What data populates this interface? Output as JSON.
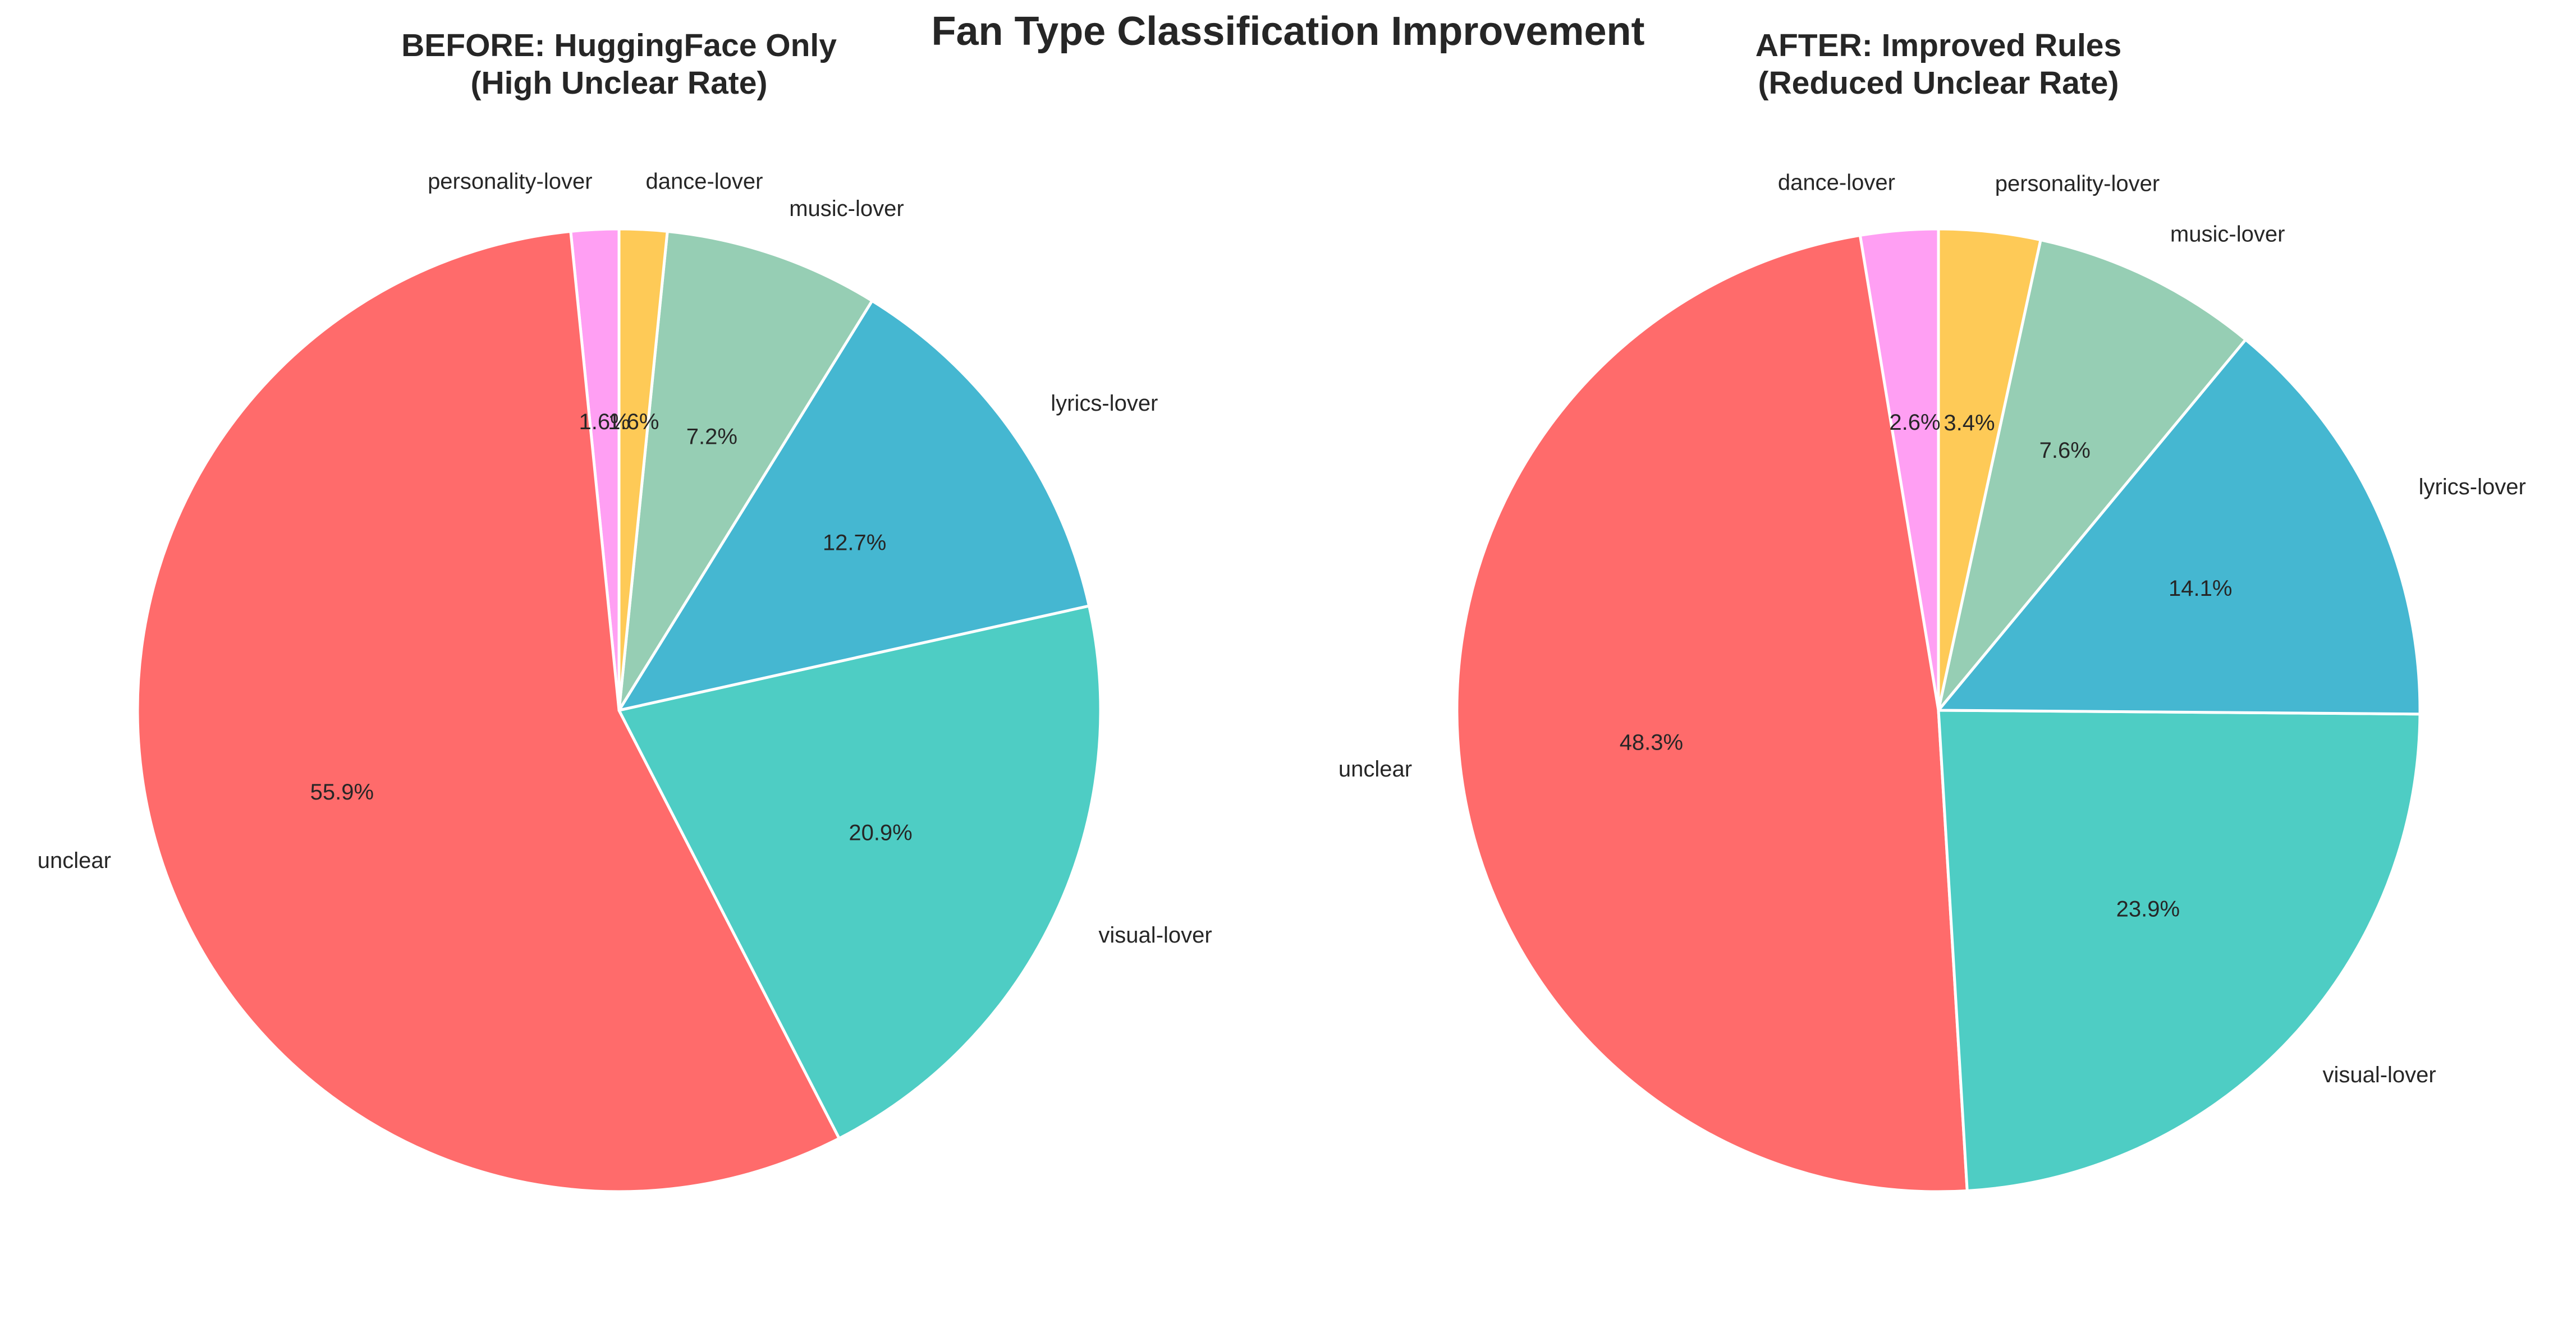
{
  "figure": {
    "title": "Fan Type Classification Improvement"
  },
  "chart_data": [
    {
      "type": "pie",
      "title": [
        "BEFORE: HuggingFace Only",
        "(High Unclear Rate)"
      ],
      "start_angle": 90,
      "direction": "counterclockwise",
      "slices": [
        {
          "label": "personality-lover",
          "value": 1.6,
          "pct": "1.6%",
          "color": "#FF9FF3"
        },
        {
          "label": "unclear",
          "value": 55.9,
          "pct": "55.9%",
          "color": "#FF6B6B"
        },
        {
          "label": "visual-lover",
          "value": 20.9,
          "pct": "20.9%",
          "color": "#4ECDC4"
        },
        {
          "label": "lyrics-lover",
          "value": 12.7,
          "pct": "12.7%",
          "color": "#45B7D1"
        },
        {
          "label": "music-lover",
          "value": 7.2,
          "pct": "7.2%",
          "color": "#96CEB4"
        },
        {
          "label": "dance-lover",
          "value": 1.6,
          "pct": "1.6%",
          "color": "#FECA57"
        }
      ]
    },
    {
      "type": "pie",
      "title": [
        "AFTER: Improved Rules",
        "(Reduced Unclear Rate)"
      ],
      "start_angle": 90,
      "direction": "counterclockwise",
      "slices": [
        {
          "label": "dance-lover",
          "value": 2.6,
          "pct": "2.6%",
          "color": "#FF9FF3"
        },
        {
          "label": "unclear",
          "value": 48.3,
          "pct": "48.3%",
          "color": "#FF6B6B"
        },
        {
          "label": "visual-lover",
          "value": 23.9,
          "pct": "23.9%",
          "color": "#4ECDC4"
        },
        {
          "label": "lyrics-lover",
          "value": 14.1,
          "pct": "14.1%",
          "color": "#45B7D1"
        },
        {
          "label": "music-lover",
          "value": 7.6,
          "pct": "7.6%",
          "color": "#96CEB4"
        },
        {
          "label": "personality-lover",
          "value": 3.4,
          "pct": "3.4%",
          "color": "#FECA57"
        }
      ]
    }
  ]
}
